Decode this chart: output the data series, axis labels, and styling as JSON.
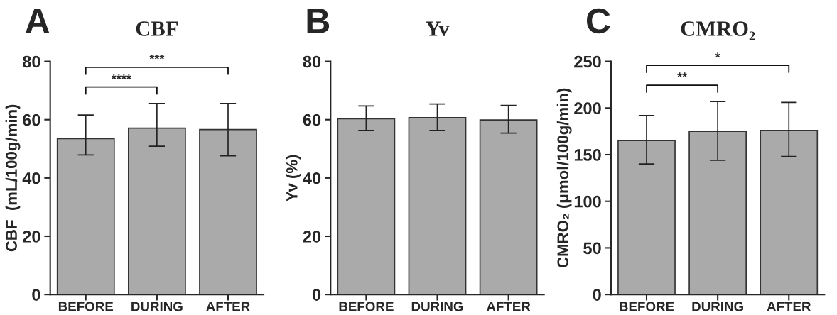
{
  "chart_data": [
    {
      "type": "bar",
      "title": "CBF",
      "ylabel": "CBF  (mL/100g/min)",
      "categories": [
        "BEFORE",
        "DURING",
        "AFTER"
      ],
      "values": [
        53.5,
        57.1,
        56.6
      ],
      "color": "#aaaaaa",
      "errors": [
        [
          47.9,
          61.6
        ],
        [
          50.9,
          65.6
        ],
        [
          47.6,
          65.6
        ]
      ],
      "ylim": [
        0,
        80
      ],
      "yticks": [
        0,
        20,
        40,
        60,
        80
      ],
      "grid": false,
      "annotations": [
        "A",
        "****",
        "***"
      ]
    },
    {
      "type": "bar",
      "title": "Yv",
      "ylabel": "Yv (%)",
      "categories": [
        "BEFORE",
        "DURING",
        "AFTER"
      ],
      "values": [
        60.3,
        60.7,
        59.9
      ],
      "color": "#aaaaaa",
      "errors": [
        [
          56.3,
          64.7
        ],
        [
          56.3,
          65.4
        ],
        [
          55.4,
          64.9
        ]
      ],
      "ylim": [
        0,
        80
      ],
      "yticks": [
        0,
        20,
        40,
        60,
        80
      ],
      "grid": false,
      "annotations": [
        "B"
      ]
    },
    {
      "type": "bar",
      "title": "CMRO₂",
      "ylabel": "CMRO₂ (μmol/100g/min)",
      "categories": [
        "BEFORE",
        "DURING",
        "AFTER"
      ],
      "values": [
        165,
        175,
        176
      ],
      "color": "#aaaaaa",
      "errors": [
        [
          140,
          192
        ],
        [
          144,
          207
        ],
        [
          148,
          206
        ]
      ],
      "ylim": [
        0,
        250
      ],
      "yticks": [
        0,
        50,
        100,
        150,
        200,
        250
      ],
      "grid": false,
      "annotations": [
        "C",
        "**",
        "*"
      ]
    }
  ]
}
